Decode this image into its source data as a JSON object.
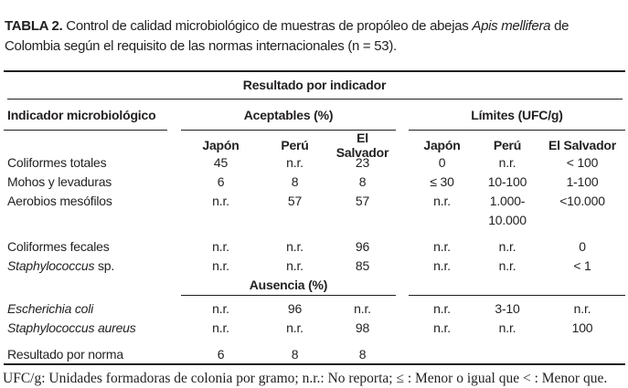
{
  "title": {
    "tag": "TABLA 2.",
    "pre": " Control de calidad microbiológico de muestras de propóleo de abejas ",
    "species": "Apis mellifera",
    "post": " de Colombia según el requisito de las normas internacionales (n = 53)."
  },
  "table": {
    "top_header": "Resultado por indicador",
    "indicator_col_header": "Indicador microbiológico",
    "group_acceptables": "Aceptables (%)",
    "group_limits": "Límites (UFC/g)",
    "subheaders": {
      "a_japon": "Japón",
      "a_peru": "Perú",
      "a_salvador": "El Salvador",
      "l_japon": "Japón",
      "l_peru": "Perú",
      "l_salvador": "El Salvador"
    },
    "section_header": "Ausencia (%)",
    "rows": [
      {
        "label_italic": "",
        "label_plain": "Coliformes totales",
        "a_japon": "45",
        "a_peru": "n.r.",
        "a_salvador": "23",
        "l_japon": "0",
        "l_peru": "n.r.",
        "l_salvador": "< 100"
      },
      {
        "label_italic": "",
        "label_plain": "Mohos y levaduras",
        "a_japon": "6",
        "a_peru": "8",
        "a_salvador": "8",
        "l_japon": "≤ 30",
        "l_peru": "10-100",
        "l_salvador": "1-100"
      },
      {
        "label_italic": "",
        "label_plain": "Aerobios mesófilos",
        "a_japon": "n.r.",
        "a_peru": "57",
        "a_salvador": "57",
        "l_japon": "n.r.",
        "l_peru": "1.000-\n10.000",
        "l_salvador": "<10.000"
      },
      {
        "label_italic": "",
        "label_plain": "Coliformes fecales",
        "a_japon": "n.r.",
        "a_peru": "n.r.",
        "a_salvador": "96",
        "l_japon": "n.r.",
        "l_peru": "n.r.",
        "l_salvador": "0"
      },
      {
        "label_italic": "Staphylococcus",
        "label_plain": " sp.",
        "a_japon": "n.r.",
        "a_peru": "n.r.",
        "a_salvador": "85",
        "l_japon": "n.r.",
        "l_peru": "n.r.",
        "l_salvador": "< 1"
      },
      {
        "label_italic": "Escherichia coli",
        "label_plain": "",
        "a_japon": "n.r.",
        "a_peru": "96",
        "a_salvador": "n.r.",
        "l_japon": "n.r.",
        "l_peru": "3-10",
        "l_salvador": "n.r."
      },
      {
        "label_italic": "Staphylococcus aureus",
        "label_plain": "",
        "a_japon": "n.r.",
        "a_peru": "n.r.",
        "a_salvador": "98",
        "l_japon": "n.r.",
        "l_peru": "n.r.",
        "l_salvador": "100"
      },
      {
        "label_italic": "",
        "label_plain": "Resultado por norma",
        "a_japon": "6",
        "a_peru": "8",
        "a_salvador": "8",
        "l_japon": "",
        "l_peru": "",
        "l_salvador": ""
      }
    ]
  },
  "footnote": "UFC/g: Unidades formadoras de colonia por gramo; n.r.: No reporta; ≤ : Menor o igual que < : Menor que."
}
